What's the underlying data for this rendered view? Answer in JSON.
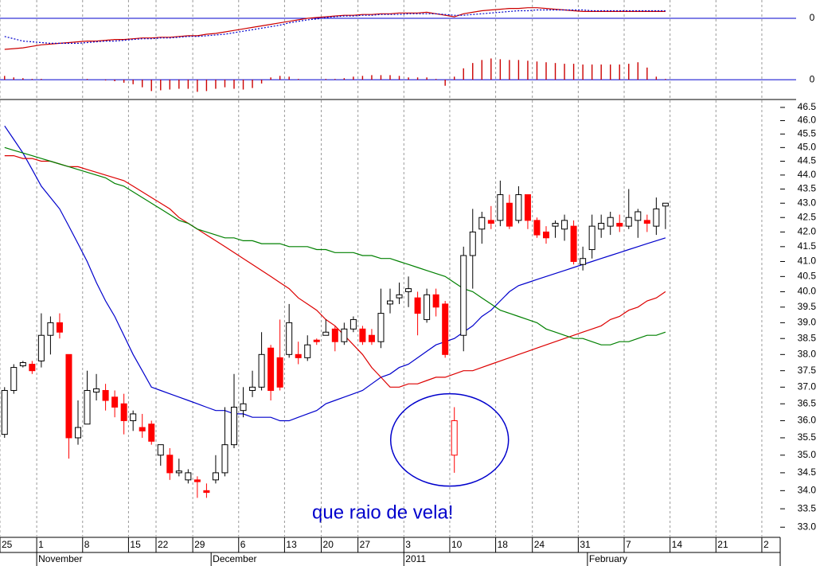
{
  "chart_data": [
    {
      "type": "indicator",
      "ylim": [
        -10.4,
        2.1
      ],
      "yticks": [
        0
      ],
      "y2lim": [
        -2.3,
        10.2
      ],
      "y2ticks": [
        0
      ],
      "zero_line_color": "#0000cc",
      "series": [
        {
          "type": "line",
          "color": "#cc0000",
          "values": [
            -4.1,
            -4.0,
            -3.9,
            -3.7,
            -3.5,
            -3.4,
            -3.3,
            -3.2,
            -3.1,
            -3.0,
            -3.0,
            -2.9,
            -2.8,
            -2.8,
            -2.7,
            -2.6,
            -2.6,
            -2.5,
            -2.5,
            -2.4,
            -2.3,
            -2.3,
            -2.1,
            -2.0,
            -1.8,
            -1.6,
            -1.4,
            -1.2,
            -1.0,
            -0.8,
            -0.6,
            -0.4,
            -0.2,
            0.0,
            0.1,
            0.2,
            0.3,
            0.4,
            0.4,
            0.5,
            0.5,
            0.6,
            0.6,
            0.7,
            0.7,
            0.7,
            0.8,
            0.6,
            0.4,
            0.2,
            0.6,
            0.8,
            1.0,
            1.1,
            1.2,
            1.3,
            1.3,
            1.4,
            1.4,
            1.3,
            1.2,
            1.1,
            1.0,
            0.9,
            0.9,
            0.9,
            0.9,
            0.9,
            0.9,
            0.9,
            0.9,
            0.9,
            0.9,
            null,
            null,
            null,
            null,
            null,
            null,
            null,
            null,
            null,
            null,
            null,
            null
          ]
        },
        {
          "type": "line",
          "color": "#0000cc",
          "dashed": true,
          "values": [
            -2.4,
            -2.7,
            -3.0,
            -3.1,
            -3.2,
            -3.3,
            -3.3,
            -3.3,
            -3.3,
            -3.2,
            -3.1,
            -3.0,
            -3.0,
            -2.9,
            -2.8,
            -2.7,
            -2.7,
            -2.6,
            -2.6,
            -2.5,
            -2.4,
            -2.4,
            -2.3,
            -2.2,
            -2.1,
            -1.9,
            -1.7,
            -1.5,
            -1.3,
            -1.1,
            -0.9,
            -0.6,
            -0.4,
            -0.2,
            -0.1,
            0.1,
            0.2,
            0.3,
            0.3,
            0.4,
            0.4,
            0.5,
            0.5,
            0.5,
            0.6,
            0.6,
            0.6,
            0.6,
            0.5,
            0.4,
            0.4,
            0.5,
            0.6,
            0.7,
            0.8,
            0.9,
            1.0,
            1.0,
            1.1,
            1.1,
            1.1,
            1.1,
            1.1,
            1.1,
            1.0,
            1.0,
            1.0,
            1.0,
            1.0,
            1.0,
            1.0,
            1.0,
            1.0,
            null,
            null,
            null,
            null,
            null,
            null,
            null,
            null,
            null,
            null,
            null,
            null
          ]
        },
        {
          "type": "bar",
          "axis": "y2",
          "color": "#cc0000",
          "values": [
            0.5,
            0.3,
            0.2,
            0.1,
            0.1,
            0,
            0,
            0,
            0,
            0.1,
            0,
            -0.1,
            -0.2,
            -0.4,
            -0.6,
            -1.0,
            -1.5,
            -1.4,
            -1.3,
            -1.2,
            -1.2,
            -1.6,
            -1.5,
            -1.2,
            -1.0,
            -1.2,
            -1.3,
            -1.1,
            -0.5,
            0.3,
            0.5,
            0.4,
            0.1,
            0,
            0,
            0.1,
            0.1,
            0.2,
            0.4,
            0.5,
            0.6,
            0.6,
            0.6,
            0.5,
            0.3,
            0.3,
            0.3,
            0.1,
            -0.8,
            0.4,
            1.5,
            2.2,
            2.6,
            2.8,
            2.7,
            2.6,
            2.6,
            2.5,
            2.4,
            2.3,
            2.2,
            2.1,
            2.1,
            2.0,
            2.0,
            2.0,
            2.0,
            2.0,
            2.1,
            2.3,
            1.6,
            0.4,
            0.1,
            null,
            null,
            null,
            null,
            null,
            null,
            null,
            null,
            null,
            null,
            null,
            null
          ]
        }
      ]
    },
    {
      "type": "candlestick",
      "log_scale": true,
      "up_color": "#ffffff",
      "down_color": "#ff0000",
      "outline_color": "#000000",
      "categories": [
        "25",
        null,
        null,
        null,
        "1",
        null,
        null,
        null,
        null,
        "8",
        null,
        null,
        null,
        null,
        "15",
        null,
        null,
        "22",
        null,
        null,
        null,
        "29",
        null,
        null,
        null,
        null,
        "6",
        null,
        null,
        null,
        null,
        "13",
        null,
        null,
        null,
        "20",
        null,
        null,
        null,
        "27",
        null,
        null,
        null,
        null,
        "3",
        null,
        null,
        null,
        null,
        "10",
        null,
        null,
        null,
        null,
        "18",
        null,
        null,
        null,
        "24",
        null,
        null,
        null,
        null,
        "31",
        null,
        null,
        null,
        null,
        "7",
        null,
        null,
        null,
        null,
        "14",
        null,
        null,
        null,
        null,
        "21",
        null,
        null,
        null,
        null,
        "2",
        null
      ],
      "months": [
        null,
        null,
        null,
        null,
        "November",
        null,
        null,
        null,
        null,
        null,
        null,
        null,
        null,
        null,
        null,
        null,
        null,
        null,
        null,
        null,
        null,
        null,
        null,
        "December",
        null,
        null,
        null,
        null,
        null,
        null,
        null,
        null,
        null,
        null,
        null,
        null,
        null,
        null,
        null,
        null,
        null,
        null,
        null,
        null,
        "2011",
        null,
        null,
        null,
        null,
        null,
        null,
        null,
        null,
        null,
        null,
        null,
        null,
        null,
        null,
        null,
        null,
        null,
        null,
        null,
        "February",
        null,
        null,
        null,
        null,
        null,
        null,
        null,
        null,
        null,
        null,
        null,
        null,
        null,
        null,
        null,
        null,
        null,
        null,
        null,
        null
      ],
      "open": [
        35.6,
        36.9,
        37.65,
        37.7,
        37.8,
        38.6,
        39.0,
        38.0,
        35.5,
        35.9,
        36.85,
        36.9,
        36.7,
        36.5,
        36.0,
        35.8,
        35.9,
        35.0,
        35.0,
        34.5,
        34.3,
        34.3,
        34.0,
        34.3,
        34.5,
        35.3,
        36.3,
        36.9,
        37.0,
        38.2,
        37.9,
        38.0,
        38.0,
        37.9,
        38.45,
        38.6,
        38.8,
        38.4,
        38.8,
        38.8,
        38.6,
        38.4,
        39.6,
        39.8,
        40.0,
        39.8,
        39.1,
        39.9,
        39.6,
        null,
        38.6,
        41.2,
        42.1,
        42.4,
        42.4,
        43.0,
        42.4,
        43.3,
        42.4,
        42.0,
        42.2,
        42.1,
        42.2,
        40.9,
        41.4,
        42.1,
        42.2,
        42.3,
        42.2,
        42.4,
        42.4,
        42.2,
        42.9,
        null,
        null,
        null,
        null,
        null,
        null,
        null,
        null,
        null,
        null,
        null,
        null
      ],
      "high": [
        37.0,
        37.7,
        37.8,
        37.8,
        39.3,
        39.2,
        39.3,
        38.0,
        36.6,
        37.5,
        37.4,
        37.1,
        36.9,
        36.8,
        36.3,
        36.2,
        36.0,
        35.3,
        35.2,
        34.9,
        34.6,
        34.4,
        34.2,
        35.0,
        36.4,
        37.4,
        37.0,
        37.5,
        38.7,
        38.3,
        39.1,
        39.6,
        38.4,
        38.6,
        38.5,
        39.1,
        38.9,
        39.0,
        39.2,
        38.9,
        38.8,
        40.1,
        40.1,
        40.3,
        40.5,
        40.0,
        40.1,
        40.1,
        39.7,
        null,
        41.5,
        42.8,
        42.7,
        42.9,
        43.8,
        43.3,
        43.6,
        43.3,
        42.5,
        42.2,
        42.4,
        42.6,
        42.4,
        41.5,
        42.6,
        42.6,
        42.7,
        42.6,
        43.5,
        42.8,
        42.6,
        43.2,
        43.0,
        null,
        null,
        null,
        null,
        null,
        null,
        null,
        null,
        null,
        null,
        null,
        null
      ],
      "low": [
        35.5,
        36.8,
        37.6,
        37.4,
        37.6,
        38.0,
        38.5,
        34.9,
        35.3,
        35.9,
        36.6,
        36.3,
        36.1,
        35.6,
        35.7,
        35.5,
        35.3,
        34.7,
        34.3,
        34.4,
        34.2,
        33.8,
        33.8,
        34.2,
        34.4,
        35.2,
        36.1,
        36.7,
        36.9,
        36.6,
        36.9,
        37.9,
        37.7,
        37.8,
        38.3,
        38.6,
        38.1,
        38.3,
        38.7,
        38.3,
        38.3,
        38.2,
        39.3,
        39.6,
        39.5,
        38.6,
        39.0,
        39.2,
        37.9,
        null,
        38.1,
        40.1,
        41.6,
        42.1,
        42.2,
        42.1,
        42.3,
        42.1,
        41.8,
        41.6,
        41.8,
        41.7,
        40.9,
        40.7,
        41.1,
        41.8,
        41.9,
        42.0,
        42.1,
        41.8,
        42.0,
        41.9,
        42.1,
        null,
        null,
        null,
        null,
        null,
        null,
        null,
        null,
        null,
        null,
        null,
        null
      ],
      "close": [
        36.9,
        37.6,
        37.75,
        37.5,
        38.6,
        39.0,
        38.7,
        35.5,
        35.8,
        36.9,
        36.95,
        36.6,
        36.4,
        36.0,
        36.2,
        35.7,
        35.4,
        35.3,
        34.5,
        34.55,
        34.5,
        34.25,
        33.95,
        34.5,
        35.3,
        36.4,
        36.5,
        37.0,
        38.0,
        36.9,
        37.0,
        39.0,
        37.9,
        38.3,
        38.4,
        38.7,
        38.4,
        38.8,
        39.1,
        38.4,
        38.4,
        39.3,
        39.7,
        39.9,
        40.1,
        39.3,
        39.9,
        39.5,
        38.0,
        null,
        41.2,
        42.0,
        42.5,
        42.3,
        43.3,
        42.2,
        43.3,
        42.4,
        41.9,
        41.8,
        42.3,
        42.4,
        41.0,
        41.1,
        42.2,
        42.3,
        42.5,
        42.2,
        42.5,
        42.7,
        42.3,
        42.8,
        43.0,
        null,
        null,
        null,
        null,
        null,
        null,
        null,
        null,
        null,
        null,
        null,
        null
      ],
      "lines": [
        {
          "color": "#0000cc",
          "values": [
            45.8,
            45.3,
            44.8,
            44.2,
            43.6,
            43.2,
            42.8,
            42.2,
            41.6,
            41.0,
            40.3,
            39.7,
            39.2,
            38.6,
            38.0,
            37.5,
            37.0,
            36.9,
            36.8,
            36.7,
            36.6,
            36.5,
            36.4,
            36.3,
            36.3,
            36.2,
            36.2,
            36.1,
            36.1,
            36.1,
            36.0,
            36.0,
            36.1,
            36.2,
            36.3,
            36.5,
            36.6,
            36.7,
            36.8,
            36.9,
            37.1,
            37.3,
            37.4,
            37.6,
            37.7,
            37.9,
            38.1,
            38.3,
            38.4,
            38.5,
            38.7,
            38.9,
            39.2,
            39.4,
            39.7,
            40.0,
            40.2,
            40.3,
            40.4,
            40.5,
            40.6,
            40.7,
            40.8,
            40.9,
            41.0,
            41.1,
            41.2,
            41.3,
            41.4,
            41.5,
            41.6,
            41.7,
            41.8,
            null,
            null,
            null,
            null,
            null,
            null,
            null,
            null,
            null,
            null,
            null,
            null
          ]
        },
        {
          "color": "#dd0000",
          "values": [
            44.7,
            44.7,
            44.6,
            44.6,
            44.5,
            44.5,
            44.4,
            44.3,
            44.3,
            44.2,
            44.1,
            44.0,
            43.9,
            43.8,
            43.6,
            43.4,
            43.2,
            43.0,
            42.8,
            42.5,
            42.3,
            42.1,
            41.9,
            41.7,
            41.5,
            41.3,
            41.1,
            40.9,
            40.7,
            40.5,
            40.3,
            40.1,
            39.8,
            39.6,
            39.4,
            39.1,
            38.9,
            38.6,
            38.3,
            38.0,
            37.6,
            37.3,
            37.0,
            37.0,
            37.1,
            37.1,
            37.2,
            37.3,
            37.3,
            37.4,
            37.5,
            37.5,
            37.6,
            37.7,
            37.8,
            37.9,
            38.0,
            38.1,
            38.2,
            38.3,
            38.4,
            38.5,
            38.6,
            38.7,
            38.8,
            38.9,
            39.1,
            39.2,
            39.4,
            39.5,
            39.7,
            39.8,
            40.0,
            null,
            null,
            null,
            null,
            null,
            null,
            null,
            null,
            null,
            null,
            null,
            null
          ]
        },
        {
          "color": "#008000",
          "values": [
            45.0,
            44.9,
            44.8,
            44.7,
            44.6,
            44.5,
            44.4,
            44.3,
            44.2,
            44.1,
            44.0,
            43.9,
            43.7,
            43.6,
            43.4,
            43.2,
            43.0,
            42.8,
            42.6,
            42.4,
            42.3,
            42.1,
            42.0,
            41.9,
            41.8,
            41.8,
            41.7,
            41.7,
            41.6,
            41.6,
            41.6,
            41.5,
            41.5,
            41.5,
            41.4,
            41.4,
            41.3,
            41.3,
            41.3,
            41.2,
            41.2,
            41.1,
            41.1,
            41.0,
            40.9,
            40.8,
            40.7,
            40.6,
            40.5,
            40.3,
            40.1,
            40.0,
            39.8,
            39.6,
            39.4,
            39.3,
            39.2,
            39.1,
            39.0,
            38.8,
            38.7,
            38.6,
            38.5,
            38.5,
            38.4,
            38.3,
            38.3,
            38.4,
            38.4,
            38.5,
            38.6,
            38.6,
            38.7,
            null,
            null,
            null,
            null,
            null,
            null,
            null,
            null,
            null,
            null,
            null,
            null
          ]
        }
      ],
      "ylim": [
        32.77,
        46.74
      ],
      "yticks": [
        {
          "value": 33,
          "label": "33.0"
        },
        33.5,
        {
          "value": 34,
          "label": "34.0"
        },
        34.5,
        {
          "value": 35,
          "label": "35.0"
        },
        35.5,
        {
          "value": 36,
          "label": "36.0"
        },
        36.5,
        {
          "value": 37,
          "label": "37.0"
        },
        37.5,
        {
          "value": 38,
          "label": "38.0"
        },
        38.5,
        {
          "value": 39,
          "label": "39.0"
        },
        39.5,
        {
          "value": 40,
          "label": "40.0"
        },
        40.5,
        {
          "value": 41,
          "label": "41.0"
        },
        41.5,
        {
          "value": 42,
          "label": "42.0"
        },
        42.5,
        {
          "value": 43,
          "label": "43.0"
        },
        43.5,
        {
          "value": 44,
          "label": "44.0"
        },
        44.5,
        {
          "value": 45,
          "label": "45.0"
        },
        45.5,
        {
          "value": 46,
          "label": "46.0"
        },
        46.5
      ],
      "annotation": {
        "text": "que raio de vela!",
        "color": "#0000cc",
        "candle_color": "#ff0000",
        "at": "10",
        "open": 35.0,
        "high": 36.4,
        "low": 34.5,
        "close": 36.0
      }
    }
  ]
}
